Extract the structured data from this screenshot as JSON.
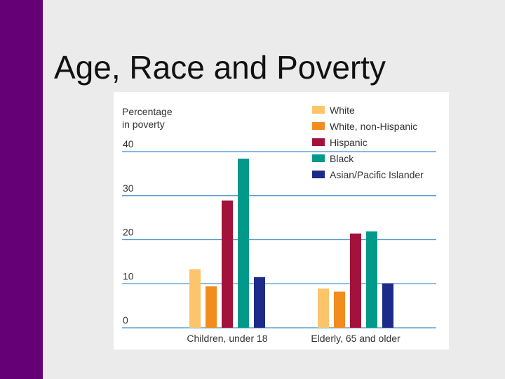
{
  "slide": {
    "title": "Age, Race and Poverty",
    "accent_color": "#660077"
  },
  "chart_data": {
    "type": "bar",
    "ylabel_lines": [
      "Percentage",
      "in poverty"
    ],
    "categories": [
      "Children, under 18",
      "Elderly, 65 and older"
    ],
    "yticks": [
      0,
      10,
      20,
      30,
      40
    ],
    "ylim": [
      0,
      40
    ],
    "grid": true,
    "legend_position": "top-right",
    "series": [
      {
        "name": "White",
        "values": [
          13.3,
          8.9
        ],
        "color": "#fcc56b"
      },
      {
        "name": "White, non-Hispanic",
        "values": [
          9.4,
          8.2
        ],
        "color": "#f28c1e"
      },
      {
        "name": "Hispanic",
        "values": [
          28.9,
          21.4
        ],
        "color": "#a3123a"
      },
      {
        "name": "Black",
        "values": [
          38.4,
          21.9
        ],
        "color": "#00998a"
      },
      {
        "name": "Asian/Pacific Islander",
        "values": [
          11.5,
          10.1
        ],
        "color": "#1c2a8a"
      }
    ]
  }
}
